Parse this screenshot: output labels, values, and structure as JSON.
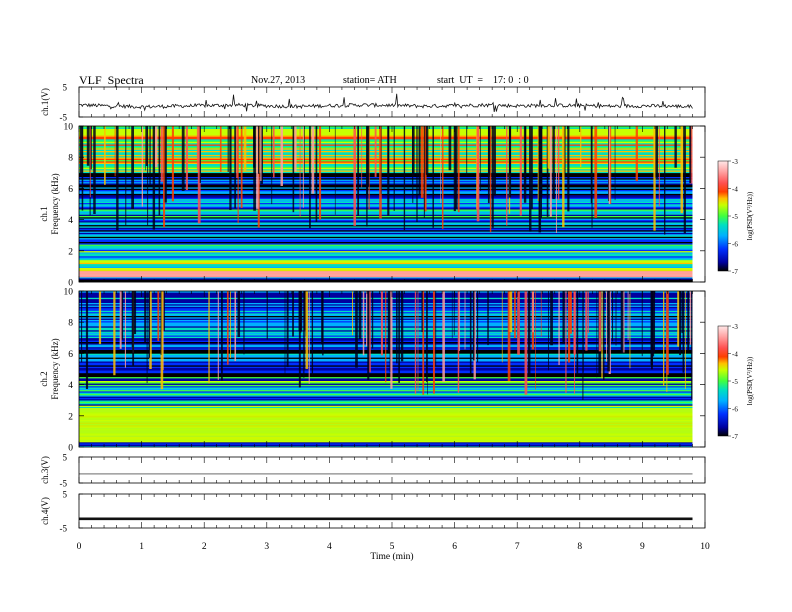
{
  "header": {
    "title": "VLF  Spectra",
    "date": "Nov.27, 2013",
    "station": "station= ATH",
    "start_ut": "start  UT  =    17: 0  : 0"
  },
  "colors": {
    "trace": "#111111",
    "colormap": [
      "#000000",
      "#0000a0",
      "#0030ff",
      "#00b0ff",
      "#00e0c0",
      "#40ff40",
      "#c8ff00",
      "#ffc000",
      "#ff4000",
      "#ff5050",
      "#ffa0a0",
      "#ffe8e8"
    ]
  },
  "chart_data": [
    {
      "type": "line",
      "panel": "ch1-waveform",
      "ylabel": "ch.1(V)",
      "yticks": [
        "5",
        "-5"
      ],
      "ylim": [
        -5,
        5
      ],
      "x": [
        0,
        0.5,
        1,
        1.5,
        2,
        2.5,
        3,
        3.5,
        4,
        4.5,
        5,
        5.5,
        6,
        6.5,
        7,
        7.5,
        8,
        8.5,
        9,
        9.5,
        9.8
      ],
      "y": [
        -1.0,
        -1.3,
        -1.6,
        -1.4,
        -1.2,
        -1.0,
        -1.3,
        -1.5,
        -1.2,
        -1.0,
        -1.1,
        -1.4,
        -1.2,
        -1.0,
        -1.3,
        -1.1,
        -1.2,
        -1.4,
        -1.3,
        -1.4,
        -1.6
      ],
      "note_values": "approximate baseline with spiky noise"
    },
    {
      "type": "heatmap",
      "panel": "ch1-spectrogram",
      "ylabel": [
        "ch.1",
        "Frequency  (kHz)"
      ],
      "yticks": [
        "0",
        "2",
        "4",
        "6",
        "8",
        "10"
      ],
      "ylim": [
        0,
        10
      ],
      "xlim": [
        0,
        9.8
      ],
      "colorbar": {
        "label": "log(PSD(V²/Hz))",
        "ticks": [
          "-3",
          "-4",
          "-5",
          "-6",
          "-7"
        ],
        "range": [
          -7,
          -3
        ]
      },
      "band_levels": [
        {
          "f": [
            0.0,
            0.3
          ],
          "level": -6.4
        },
        {
          "f": [
            0.3,
            0.7
          ],
          "level": -3.6
        },
        {
          "f": [
            0.7,
            1.5
          ],
          "level": -5.2
        },
        {
          "f": [
            1.5,
            2.5
          ],
          "level": -5.6
        },
        {
          "f": [
            2.5,
            4.0
          ],
          "level": -6.2
        },
        {
          "f": [
            4.0,
            5.5
          ],
          "level": -6.0
        },
        {
          "f": [
            5.5,
            7.0
          ],
          "level": -6.5
        },
        {
          "f": [
            7.0,
            10.0
          ],
          "level": -4.8
        }
      ]
    },
    {
      "type": "heatmap",
      "panel": "ch2-spectrogram",
      "ylabel": [
        "ch.2",
        "Frequency  (kHz)"
      ],
      "yticks": [
        "0",
        "2",
        "4",
        "6",
        "8",
        "10"
      ],
      "ylim": [
        0,
        10
      ],
      "xlim": [
        0,
        9.8
      ],
      "colorbar": {
        "label": "log(PSD(V²/Hz))",
        "ticks": [
          "-3",
          "-4",
          "-5",
          "-6",
          "-7"
        ],
        "range": [
          -7,
          -3
        ]
      },
      "band_levels": [
        {
          "f": [
            0.0,
            0.3
          ],
          "level": -6.3
        },
        {
          "f": [
            0.3,
            2.5
          ],
          "level": -5.0
        },
        {
          "f": [
            2.5,
            4.5
          ],
          "level": -5.7
        },
        {
          "f": [
            4.5,
            6.0
          ],
          "level": -6.3
        },
        {
          "f": [
            6.0,
            7.0
          ],
          "level": -6.6
        },
        {
          "f": [
            7.0,
            10.0
          ],
          "level": -6.0
        }
      ]
    },
    {
      "type": "line",
      "panel": "ch3-waveform",
      "ylabel": "ch.3(V)",
      "yticks": [
        "5",
        "-5"
      ],
      "ylim": [
        -5,
        5
      ],
      "x": [
        0,
        9.8
      ],
      "y": [
        -1.5,
        -1.5
      ]
    },
    {
      "type": "line",
      "panel": "ch4-waveform",
      "ylabel": "ch.4(V)",
      "yticks": [
        "5",
        "-5"
      ],
      "ylim": [
        -5,
        5
      ],
      "x": [
        0,
        9.8
      ],
      "y": [
        -2.3,
        -2.3
      ]
    }
  ],
  "xaxis": {
    "label": "Time  (min)",
    "ticks": [
      "0",
      "1",
      "2",
      "3",
      "4",
      "5",
      "6",
      "7",
      "8",
      "9",
      "10"
    ],
    "xlim": [
      0,
      10
    ]
  }
}
